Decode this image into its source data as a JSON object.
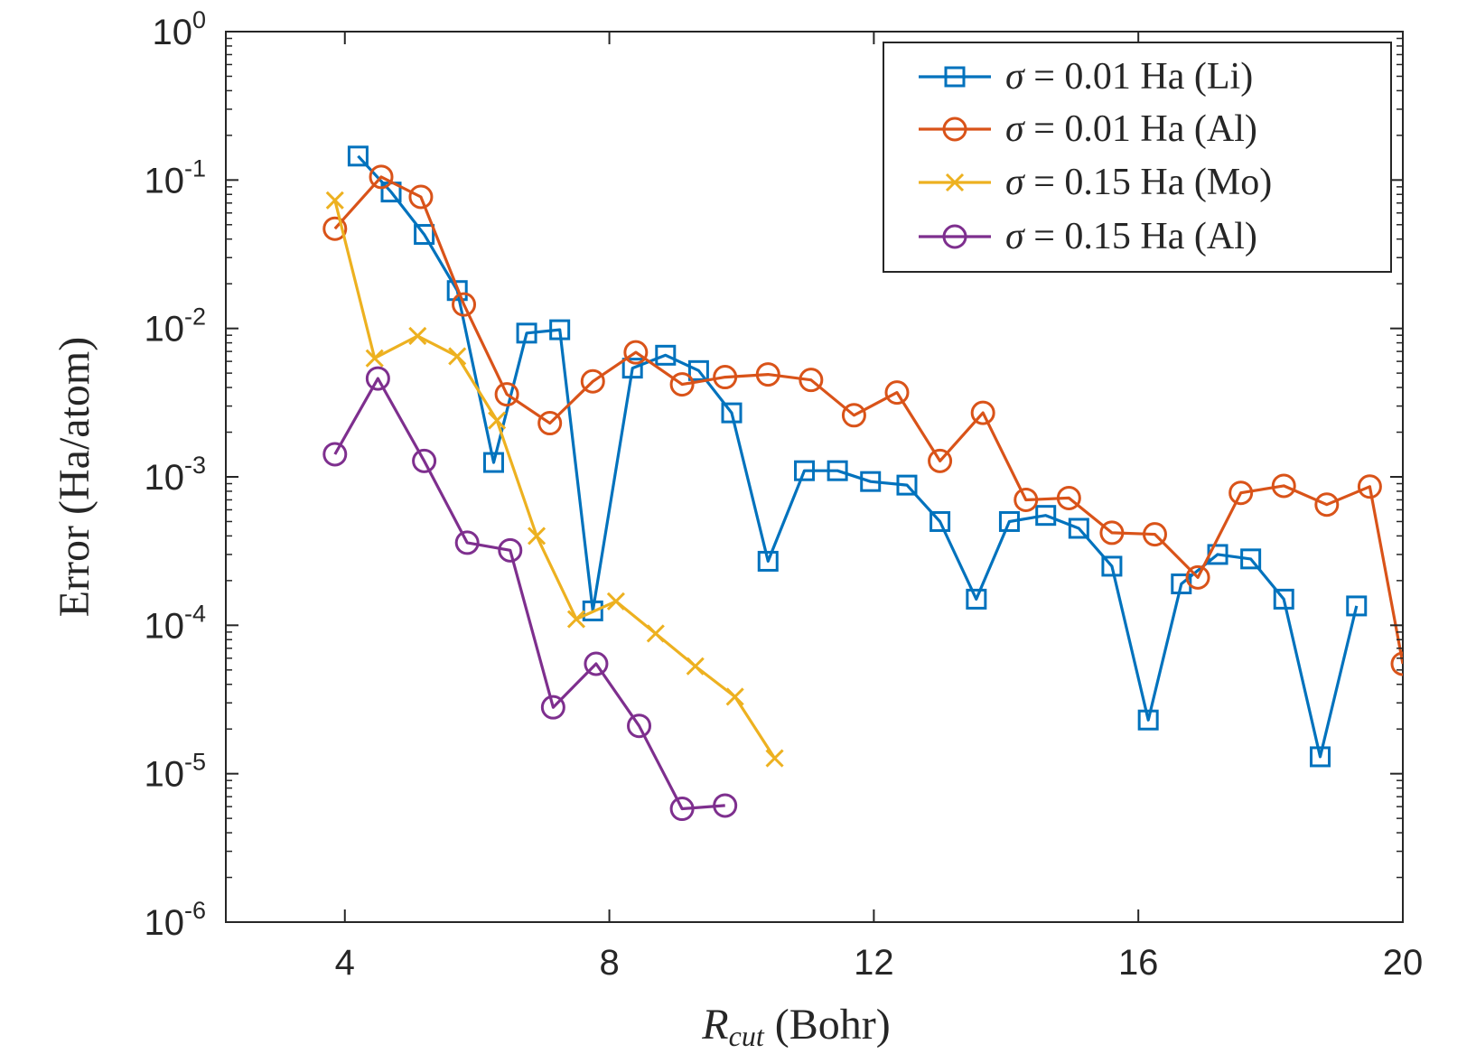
{
  "chart_data": {
    "type": "line",
    "xlabel": {
      "main": "R",
      "sub": "cut",
      "rest": " (Bohr)"
    },
    "ylabel": "Error (Ha/atom)",
    "xlim": [
      2.2,
      20
    ],
    "ylim": [
      1e-06,
      1
    ],
    "yscale": "log",
    "grid": false,
    "box": true,
    "legend_location": "top-right",
    "x_ticks": [
      {
        "value": 4,
        "label": "4"
      },
      {
        "value": 8,
        "label": "8"
      },
      {
        "value": 12,
        "label": "12"
      },
      {
        "value": 16,
        "label": "16"
      },
      {
        "value": 20,
        "label": "20"
      }
    ],
    "y_ticks": [
      {
        "value": 1,
        "base": "10",
        "exp": "0"
      },
      {
        "value": 0.1,
        "base": "10",
        "exp": "-1"
      },
      {
        "value": 0.01,
        "base": "10",
        "exp": "-2"
      },
      {
        "value": 0.001,
        "base": "10",
        "exp": "-3"
      },
      {
        "value": 0.0001,
        "base": "10",
        "exp": "-4"
      },
      {
        "value": 1e-05,
        "base": "10",
        "exp": "-5"
      },
      {
        "value": 1e-06,
        "base": "10",
        "exp": "-6"
      }
    ],
    "series": [
      {
        "name": "σ = 0.01 Ha (Li)",
        "color": "#0072BD",
        "marker": "square",
        "x": [
          4.2,
          4.7,
          5.2,
          5.7,
          6.25,
          6.75,
          7.25,
          7.75,
          8.35,
          8.85,
          9.35,
          9.85,
          10.4,
          10.95,
          11.45,
          11.95,
          12.5,
          13.0,
          13.55,
          14.05,
          14.6,
          15.1,
          15.6,
          16.15,
          16.65,
          17.2,
          17.7,
          18.2,
          18.75,
          19.3
        ],
        "y": [
          0.145,
          0.083,
          0.043,
          0.018,
          0.00125,
          0.0093,
          0.0098,
          0.000125,
          0.0054,
          0.0066,
          0.0052,
          0.0027,
          0.00027,
          0.0011,
          0.0011,
          0.00093,
          0.00088,
          0.0005,
          0.00015,
          0.0005,
          0.00055,
          0.00045,
          0.00025,
          2.3e-05,
          0.00019,
          0.0003,
          0.00028,
          0.00015,
          1.3e-05,
          0.000135
        ]
      },
      {
        "name": "σ = 0.01 Ha (Al)",
        "color": "#D95319",
        "marker": "circle",
        "x": [
          3.85,
          4.55,
          5.15,
          5.8,
          6.45,
          7.1,
          7.75,
          8.4,
          9.1,
          9.75,
          10.4,
          11.05,
          11.7,
          12.35,
          13.0,
          13.65,
          14.3,
          14.95,
          15.6,
          16.25,
          16.9,
          17.55,
          18.2,
          18.85,
          19.5,
          20.0
        ],
        "y": [
          0.047,
          0.105,
          0.077,
          0.0145,
          0.0036,
          0.0023,
          0.0044,
          0.0069,
          0.0042,
          0.0047,
          0.0049,
          0.0045,
          0.0026,
          0.0037,
          0.00128,
          0.0027,
          0.0007,
          0.00072,
          0.00042,
          0.00041,
          0.00021,
          0.00078,
          0.00087,
          0.00065,
          0.00086,
          5.5e-05
        ]
      },
      {
        "name": "σ = 0.15 Ha (Mo)",
        "color": "#EDB120",
        "marker": "x",
        "x": [
          3.85,
          4.45,
          5.1,
          5.7,
          6.3,
          6.9,
          7.5,
          8.1,
          8.7,
          9.3,
          9.9,
          10.5
        ],
        "y": [
          0.073,
          0.0063,
          0.0089,
          0.0065,
          0.0024,
          0.0004,
          0.00011,
          0.000145,
          8.8e-05,
          5.3e-05,
          3.3e-05,
          1.27e-05
        ]
      },
      {
        "name": "σ = 0.15 Ha (Al)",
        "color": "#7E2F8E",
        "marker": "circle",
        "x": [
          3.85,
          4.5,
          5.2,
          5.85,
          6.5,
          7.15,
          7.8,
          8.45,
          9.1,
          9.75
        ],
        "y": [
          0.00142,
          0.0046,
          0.00128,
          0.00036,
          0.00032,
          2.8e-05,
          5.5e-05,
          2.1e-05,
          5.8e-06,
          6.1e-06
        ]
      }
    ],
    "legend": [
      {
        "sigma": "σ",
        "text": " = 0.01 Ha (Li)"
      },
      {
        "sigma": "σ",
        "text": " = 0.01 Ha (Al)"
      },
      {
        "sigma": "σ",
        "text": " = 0.15 Ha (Mo)"
      },
      {
        "sigma": "σ",
        "text": " = 0.15 Ha (Al)"
      }
    ]
  }
}
